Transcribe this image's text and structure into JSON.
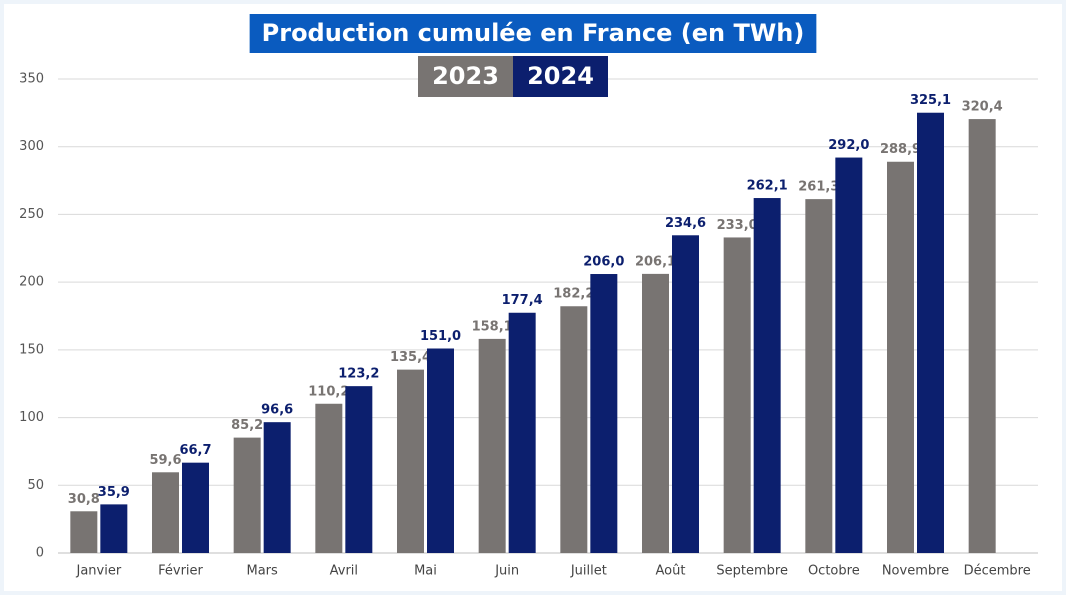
{
  "chart_data": {
    "type": "bar",
    "title": "Production cumulée en France (en TWh)",
    "categories": [
      "Janvier",
      "Février",
      "Mars",
      "Avril",
      "Mai",
      "Juin",
      "Juillet",
      "Août",
      "Septembre",
      "Octobre",
      "Novembre",
      "Décembre"
    ],
    "series": [
      {
        "name": "2023",
        "color": "#787472",
        "values": [
          30.8,
          59.6,
          85.2,
          110.2,
          135.4,
          158.1,
          182.2,
          206.1,
          233.0,
          261.3,
          288.9,
          320.4
        ],
        "value_labels": [
          "30,8",
          "59,6",
          "85,2",
          "110,2",
          "135,4",
          "158,1",
          "182,2",
          "206,1",
          "233,0",
          "261,3",
          "288,9",
          "320,4"
        ]
      },
      {
        "name": "2024",
        "color": "#0c1f6e",
        "values": [
          35.9,
          66.7,
          96.6,
          123.2,
          151.0,
          177.4,
          206.0,
          234.6,
          262.1,
          292.0,
          325.1,
          null
        ],
        "value_labels": [
          "35,9",
          "66,7",
          "96,6",
          "123,2",
          "151,0",
          "177,4",
          "206,0",
          "234,6",
          "262,1",
          "292,0",
          "325,1",
          null
        ]
      }
    ],
    "ylim": [
      0,
      350
    ],
    "yticks": [
      0,
      50,
      100,
      150,
      200,
      250,
      300,
      350
    ],
    "grid": true,
    "title_color": "#0a5bbf"
  }
}
